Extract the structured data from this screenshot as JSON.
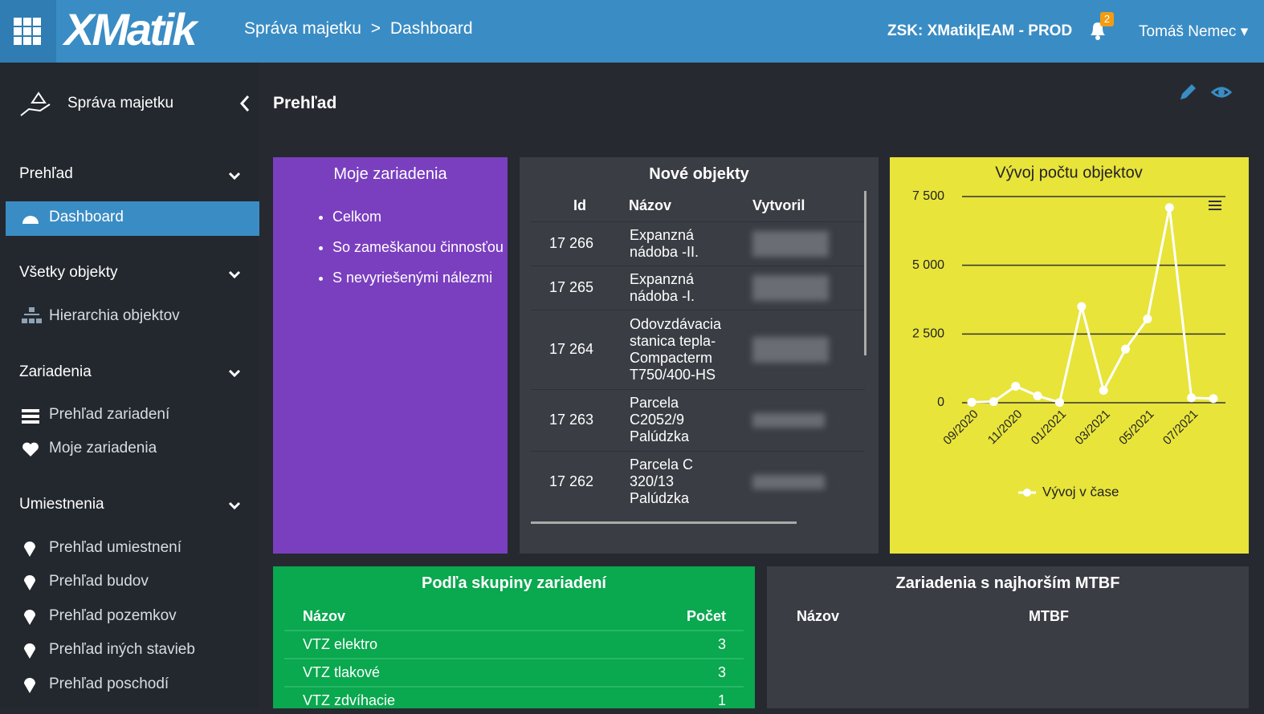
{
  "header": {
    "logo": "XMatik",
    "breadcrumb": [
      "Správa majetku",
      "Dashboard"
    ],
    "breadcrumb_separator": ">",
    "environment": "ZSK: XMatik|EAM - PROD",
    "notifications": 2,
    "user": "Tomáš Nemec"
  },
  "sidebar": {
    "title": "Správa majetku",
    "sections": [
      {
        "title": "Prehľad",
        "items": [
          "Dashboard"
        ]
      },
      {
        "title": "Všetky objekty",
        "items": [
          "Hierarchia objektov"
        ]
      },
      {
        "title": "Zariadenia",
        "items": [
          "Prehľad zariadení",
          "Moje zariadenia"
        ]
      },
      {
        "title": "Umiestnenia",
        "items": [
          "Prehľad umiestnení",
          "Prehľad budov",
          "Prehľad pozemkov",
          "Prehľad iných stavieb",
          "Prehľad poschodí"
        ]
      }
    ]
  },
  "page": {
    "title": "Prehľad"
  },
  "my_devices": {
    "title": "Moje zariadenia",
    "items": [
      "Celkom",
      "So zameškanou činnosťou",
      "S nevyriešenými nálezmi"
    ]
  },
  "new_objects": {
    "title": "Nové objekty",
    "columns": [
      "Id",
      "Názov",
      "Vytvoril"
    ],
    "rows": [
      [
        "17 266",
        "Expanzná nádoba -II."
      ],
      [
        "17 265",
        "Expanzná nádoba -I."
      ],
      [
        "17 264",
        "Odovzdávacia stanica tepla-Compacterm T750/400-HS"
      ],
      [
        "17 263",
        "Parcela C2052/9 Palúdzka"
      ],
      [
        "17 262",
        "Parcela C 320/13 Palúdzka"
      ]
    ]
  },
  "device_groups": {
    "title": "Podľa skupiny zariadení",
    "columns": [
      "Názov",
      "Počet"
    ],
    "rows": [
      [
        "VTZ elektro",
        3
      ],
      [
        "VTZ tlakové",
        3
      ],
      [
        "VTZ zdvíhacie",
        1
      ]
    ]
  },
  "worst_mtbf": {
    "title": "Zariadenia s najhorším MTBF",
    "columns": [
      "Názov",
      "MTBF"
    ]
  },
  "chart_data": {
    "type": "line",
    "title": "Vývoj počtu objektov",
    "categories": [
      "09/2020",
      null,
      "11/2020",
      null,
      "01/2021",
      null,
      "03/2021",
      null,
      "05/2021",
      null,
      "07/2021",
      null
    ],
    "series": [
      {
        "name": "Vývoj v čase",
        "color": "#ffffff",
        "values": [
          20,
          40,
          600,
          250,
          10,
          3500,
          450,
          1950,
          3050,
          7100,
          180,
          150
        ]
      }
    ],
    "ylim": [
      0,
      7500
    ],
    "yticks": [
      0,
      {
        "value": 2500,
        "label": "2 500"
      },
      {
        "value": 5000,
        "label": "5 000"
      },
      {
        "value": 7500,
        "label": "7 500"
      }
    ],
    "grid": true,
    "background": "#e8e43a"
  }
}
